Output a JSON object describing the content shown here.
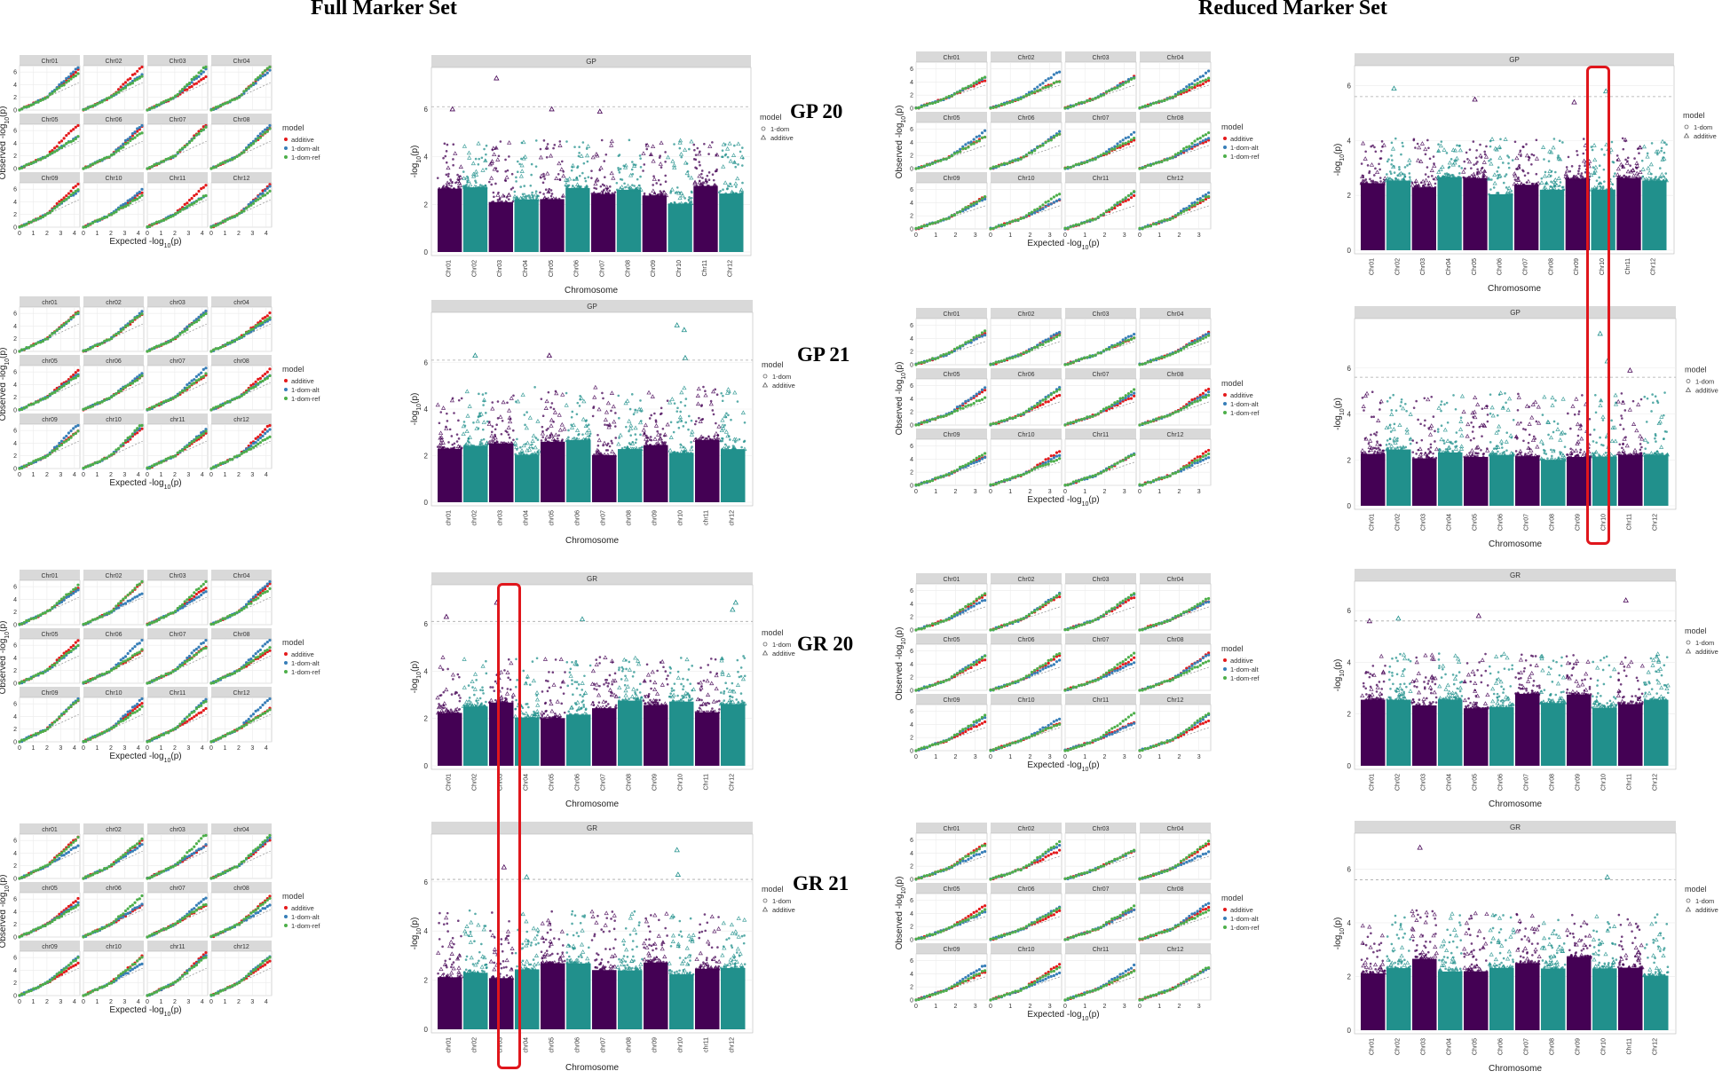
{
  "titles": {
    "full": "Full Marker Set",
    "reduced": "Reduced Marker Set"
  },
  "rows": [
    "GP 20",
    "GP 21",
    "GR 20",
    "GR 21"
  ],
  "colors": {
    "purple": "#440154",
    "teal": "#21908c",
    "red": "#e41a1c",
    "blue": "#377eb8",
    "green": "#4daf4a",
    "strip": "#d9d9d9",
    "grid": "#ebebeb",
    "highlight": "#e0161c"
  },
  "chart_data": [
    {
      "type": "scatter",
      "subtype": "qq",
      "set": "Full Marker Set",
      "trait": "GP 20",
      "panels": [
        "Chr01",
        "Chr02",
        "Chr03",
        "Chr04",
        "Chr05",
        "Chr06",
        "Chr07",
        "Chr08",
        "Chr09",
        "Chr10",
        "Chr11",
        "Chr12"
      ],
      "xlabel": "Expected -log10(p)",
      "ylabel": "Observed -log10(p)",
      "x_ticks": [
        0,
        1,
        2,
        3,
        4
      ],
      "y_ticks": [
        0,
        2,
        4,
        6
      ],
      "xlim": [
        0,
        4.4
      ],
      "ylim": [
        0,
        7
      ],
      "legend_title": "model",
      "series": [
        "additive",
        "1-dom-alt",
        "1-dom-ref"
      ]
    },
    {
      "type": "scatter",
      "subtype": "manhattan",
      "set": "Full Marker Set",
      "trait": "GP 20",
      "strip": "GP",
      "chromosomes": [
        "Chr01",
        "Chr02",
        "Chr03",
        "Chr04",
        "Chr05",
        "Chr06",
        "Chr07",
        "Chr08",
        "Chr09",
        "Chr10",
        "Chr11",
        "Chr12"
      ],
      "xlabel": "Chromosome",
      "ylabel": "-log10(p)",
      "y_ticks": [
        0,
        2,
        4,
        6
      ],
      "ylim": [
        0,
        7.6
      ],
      "threshold": 6.1,
      "legend_title": "model",
      "series": [
        "1-dom",
        "additive"
      ],
      "top_hits": [
        {
          "chr": "Chr03",
          "value": 7.3
        },
        {
          "chr": "Chr01",
          "value": 6.0
        },
        {
          "chr": "Chr05",
          "value": 6.0
        },
        {
          "chr": "Chr07",
          "value": 5.9
        }
      ]
    },
    {
      "type": "scatter",
      "subtype": "qq",
      "set": "Full Marker Set",
      "trait": "GP 21",
      "panels": [
        "chr01",
        "chr02",
        "chr03",
        "chr04",
        "chr05",
        "chr06",
        "chr07",
        "chr08",
        "chr09",
        "chr10",
        "chr11",
        "chr12"
      ],
      "xlabel": "Expected -log10(p)",
      "ylabel": "Observed -log10(p)",
      "x_ticks": [
        0,
        1,
        2,
        3,
        4
      ],
      "y_ticks": [
        0,
        2,
        4,
        6
      ],
      "xlim": [
        0,
        4.4
      ],
      "ylim": [
        0,
        7
      ],
      "legend_title": "model",
      "series": [
        "additive",
        "1-dom-alt",
        "1-dom-ref"
      ]
    },
    {
      "type": "scatter",
      "subtype": "manhattan",
      "set": "Full Marker Set",
      "trait": "GP 21",
      "strip": "GP",
      "chromosomes": [
        "chr01",
        "chr02",
        "chr03",
        "chr04",
        "chr05",
        "chr06",
        "chr07",
        "chr08",
        "chr09",
        "chr10",
        "chr11",
        "chr12"
      ],
      "xlabel": "Chromosome",
      "ylabel": "-log10(p)",
      "y_ticks": [
        0,
        2,
        4,
        6
      ],
      "ylim": [
        0,
        8
      ],
      "threshold": 6.1,
      "legend_title": "model",
      "series": [
        "1-dom",
        "additive"
      ],
      "top_hits": [
        {
          "chr": "chr10",
          "value": 7.6
        },
        {
          "chr": "chr10",
          "value": 7.4
        },
        {
          "chr": "chr02",
          "value": 6.3
        },
        {
          "chr": "chr05",
          "value": 6.3
        },
        {
          "chr": "chr10",
          "value": 6.2
        }
      ]
    },
    {
      "type": "scatter",
      "subtype": "qq",
      "set": "Full Marker Set",
      "trait": "GR 20",
      "panels": [
        "Chr01",
        "Chr02",
        "Chr03",
        "Chr04",
        "Chr05",
        "Chr06",
        "Chr07",
        "Chr08",
        "Chr09",
        "Chr10",
        "Chr11",
        "Chr12"
      ],
      "xlabel": "Expected -log10(p)",
      "ylabel": "Observed -log10(p)",
      "x_ticks": [
        0,
        1,
        2,
        3,
        4
      ],
      "y_ticks": [
        0,
        2,
        4,
        6
      ],
      "xlim": [
        0,
        4.4
      ],
      "ylim": [
        0,
        7
      ],
      "legend_title": "model",
      "series": [
        "additive",
        "1-dom-alt",
        "1-dom-ref"
      ]
    },
    {
      "type": "scatter",
      "subtype": "manhattan",
      "set": "Full Marker Set",
      "trait": "GR 20",
      "strip": "GR",
      "chromosomes": [
        "Chr01",
        "Chr02",
        "Chr03",
        "Chr04",
        "Chr05",
        "Chr06",
        "Chr07",
        "Chr08",
        "Chr09",
        "Chr10",
        "Chr11",
        "Chr12"
      ],
      "xlabel": "Chromosome",
      "ylabel": "-log10(p)",
      "y_ticks": [
        0,
        2,
        4,
        6
      ],
      "ylim": [
        0,
        7.5
      ],
      "threshold": 6.1,
      "legend_title": "model",
      "series": [
        "1-dom",
        "additive"
      ],
      "top_hits": [
        {
          "chr": "Chr03",
          "value": 6.9
        },
        {
          "chr": "Chr12",
          "value": 6.9
        },
        {
          "chr": "Chr12",
          "value": 6.6
        },
        {
          "chr": "Chr01",
          "value": 6.3
        },
        {
          "chr": "Chr06",
          "value": 6.2
        }
      ]
    },
    {
      "type": "scatter",
      "subtype": "qq",
      "set": "Full Marker Set",
      "trait": "GR 21",
      "panels": [
        "chr01",
        "chr02",
        "chr03",
        "chr04",
        "chr05",
        "chr06",
        "chr07",
        "chr08",
        "chr09",
        "chr10",
        "chr11",
        "chr12"
      ],
      "xlabel": "Expected -log10(p)",
      "ylabel": "Observed -log10(p)",
      "x_ticks": [
        0,
        1,
        2,
        3,
        4
      ],
      "y_ticks": [
        0,
        2,
        4,
        6
      ],
      "xlim": [
        0,
        4.4
      ],
      "ylim": [
        0,
        7
      ],
      "legend_title": "model",
      "series": [
        "additive",
        "1-dom-alt",
        "1-dom-ref"
      ]
    },
    {
      "type": "scatter",
      "subtype": "manhattan",
      "set": "Full Marker Set",
      "trait": "GR 21",
      "strip": "GR",
      "chromosomes": [
        "chr01",
        "chr02",
        "chr03",
        "chr04",
        "chr05",
        "chr06",
        "chr07",
        "chr08",
        "chr09",
        "chr10",
        "chr11",
        "chr12"
      ],
      "xlabel": "Chromosome",
      "ylabel": "-log10(p)",
      "y_ticks": [
        0,
        2,
        4,
        6
      ],
      "ylim": [
        0,
        7.8
      ],
      "threshold": 6.1,
      "legend_title": "model",
      "series": [
        "1-dom",
        "additive"
      ],
      "top_hits": [
        {
          "chr": "chr10",
          "value": 7.3
        },
        {
          "chr": "chr03",
          "value": 6.6
        },
        {
          "chr": "chr04",
          "value": 6.2
        },
        {
          "chr": "chr10",
          "value": 6.3
        }
      ]
    },
    {
      "type": "scatter",
      "subtype": "qq",
      "set": "Reduced Marker Set",
      "trait": "GP 20",
      "panels": [
        "Chr01",
        "Chr02",
        "Chr03",
        "Chr04",
        "Chr05",
        "Chr06",
        "Chr07",
        "Chr08",
        "Chr09",
        "Chr10",
        "Chr11",
        "Chr12"
      ],
      "xlabel": "Expected -log10(p)",
      "ylabel": "Observed -log10(p)",
      "x_ticks": [
        0,
        1,
        2,
        3
      ],
      "y_ticks": [
        0,
        2,
        4,
        6
      ],
      "xlim": [
        0,
        3.6
      ],
      "ylim": [
        0,
        7
      ],
      "legend_title": "model",
      "series": [
        "additive",
        "1-dom-alt",
        "1-dom-ref"
      ]
    },
    {
      "type": "scatter",
      "subtype": "manhattan",
      "set": "Reduced Marker Set",
      "trait": "GP 20",
      "strip": "GP",
      "chromosomes": [
        "Chr01",
        "Chr02",
        "Chr03",
        "Chr04",
        "Chr05",
        "Chr06",
        "Chr07",
        "Chr08",
        "Chr09",
        "Chr10",
        "Chr11",
        "Chr12"
      ],
      "xlabel": "Chromosome",
      "ylabel": "-log10(p)",
      "y_ticks": [
        0,
        2,
        4,
        6
      ],
      "ylim": [
        0,
        6.6
      ],
      "threshold": 5.6,
      "legend_title": "model",
      "series": [
        "1-dom",
        "additive"
      ],
      "top_hits": [
        {
          "chr": "Chr02",
          "value": 5.9
        },
        {
          "chr": "Chr10",
          "value": 5.8
        },
        {
          "chr": "Chr05",
          "value": 5.5
        },
        {
          "chr": "Chr09",
          "value": 5.4
        }
      ]
    },
    {
      "type": "scatter",
      "subtype": "qq",
      "set": "Reduced Marker Set",
      "trait": "GP 21",
      "panels": [
        "Chr01",
        "Chr02",
        "Chr03",
        "Chr04",
        "Chr05",
        "Chr06",
        "Chr07",
        "Chr08",
        "Chr09",
        "Chr10",
        "Chr11",
        "Chr12"
      ],
      "xlabel": "Expected -log10(p)",
      "ylabel": "Observed -log10(p)",
      "x_ticks": [
        0,
        1,
        2,
        3
      ],
      "y_ticks": [
        0,
        2,
        4,
        6
      ],
      "xlim": [
        0,
        3.6
      ],
      "ylim": [
        0,
        7
      ],
      "legend_title": "model",
      "series": [
        "additive",
        "1-dom-alt",
        "1-dom-ref"
      ]
    },
    {
      "type": "scatter",
      "subtype": "manhattan",
      "set": "Reduced Marker Set",
      "trait": "GP 21",
      "strip": "GP",
      "chromosomes": [
        "Chr01",
        "Chr02",
        "Chr03",
        "Chr04",
        "Chr05",
        "Chr06",
        "Chr07",
        "Chr08",
        "Chr09",
        "Chr10",
        "Chr11",
        "Chr12"
      ],
      "xlabel": "Chromosome",
      "ylabel": "-log10(p)",
      "y_ticks": [
        0,
        2,
        4,
        6
      ],
      "ylim": [
        0,
        8
      ],
      "threshold": 5.6,
      "legend_title": "model",
      "series": [
        "1-dom",
        "additive"
      ],
      "top_hits": [
        {
          "chr": "Chr10",
          "value": 7.5
        },
        {
          "chr": "Chr10",
          "value": 6.3
        },
        {
          "chr": "Chr11",
          "value": 5.9
        }
      ]
    },
    {
      "type": "scatter",
      "subtype": "qq",
      "set": "Reduced Marker Set",
      "trait": "GR 20",
      "panels": [
        "Chr01",
        "Chr02",
        "Chr03",
        "Chr04",
        "Chr05",
        "Chr06",
        "Chr07",
        "Chr08",
        "Chr09",
        "Chr10",
        "Chr11",
        "Chr12"
      ],
      "xlabel": "Expected -log10(p)",
      "ylabel": "Observed -log10(p)",
      "x_ticks": [
        0,
        1,
        2,
        3
      ],
      "y_ticks": [
        0,
        2,
        4,
        6
      ],
      "xlim": [
        0,
        3.6
      ],
      "ylim": [
        0,
        7
      ],
      "legend_title": "model",
      "series": [
        "additive",
        "1-dom-alt",
        "1-dom-ref"
      ]
    },
    {
      "type": "scatter",
      "subtype": "manhattan",
      "set": "Reduced Marker Set",
      "trait": "GR 20",
      "strip": "GR",
      "chromosomes": [
        "Chr01",
        "Chr02",
        "Chr03",
        "Chr04",
        "Chr05",
        "Chr06",
        "Chr07",
        "Chr08",
        "Chr09",
        "Chr10",
        "Chr11",
        "Chr12"
      ],
      "xlabel": "Chromosome",
      "ylabel": "-log10(p)",
      "y_ticks": [
        0,
        2,
        4,
        6
      ],
      "ylim": [
        0,
        7
      ],
      "threshold": 5.6,
      "legend_title": "model",
      "series": [
        "1-dom",
        "additive"
      ],
      "top_hits": [
        {
          "chr": "Chr11",
          "value": 6.4
        },
        {
          "chr": "Chr05",
          "value": 5.8
        },
        {
          "chr": "Chr02",
          "value": 5.7
        },
        {
          "chr": "Chr01",
          "value": 5.6
        }
      ]
    },
    {
      "type": "scatter",
      "subtype": "qq",
      "set": "Reduced Marker Set",
      "trait": "GR 21",
      "panels": [
        "Chr01",
        "Chr02",
        "Chr03",
        "Chr04",
        "Chr05",
        "Chr06",
        "Chr07",
        "Chr08",
        "Chr09",
        "Chr10",
        "Chr11",
        "Chr12"
      ],
      "xlabel": "Expected -log10(p)",
      "ylabel": "Observed -log10(p)",
      "x_ticks": [
        0,
        1,
        2,
        3
      ],
      "y_ticks": [
        0,
        2,
        4,
        6
      ],
      "xlim": [
        0,
        3.6
      ],
      "ylim": [
        0,
        7
      ],
      "legend_title": "model",
      "series": [
        "additive",
        "1-dom-alt",
        "1-dom-ref"
      ]
    },
    {
      "type": "scatter",
      "subtype": "manhattan",
      "set": "Reduced Marker Set",
      "trait": "GR 21",
      "strip": "GR",
      "chromosomes": [
        "Chr01",
        "Chr02",
        "Chr03",
        "Chr04",
        "Chr05",
        "Chr06",
        "Chr07",
        "Chr08",
        "Chr09",
        "Chr10",
        "Chr11",
        "Chr12"
      ],
      "xlabel": "Chromosome",
      "ylabel": "-log10(p)",
      "y_ticks": [
        0,
        2,
        4,
        6
      ],
      "ylim": [
        0,
        7.2
      ],
      "threshold": 5.6,
      "legend_title": "model",
      "series": [
        "1-dom",
        "additive"
      ],
      "top_hits": [
        {
          "chr": "Chr03",
          "value": 6.8
        },
        {
          "chr": "Chr10",
          "value": 5.7
        }
      ]
    }
  ]
}
